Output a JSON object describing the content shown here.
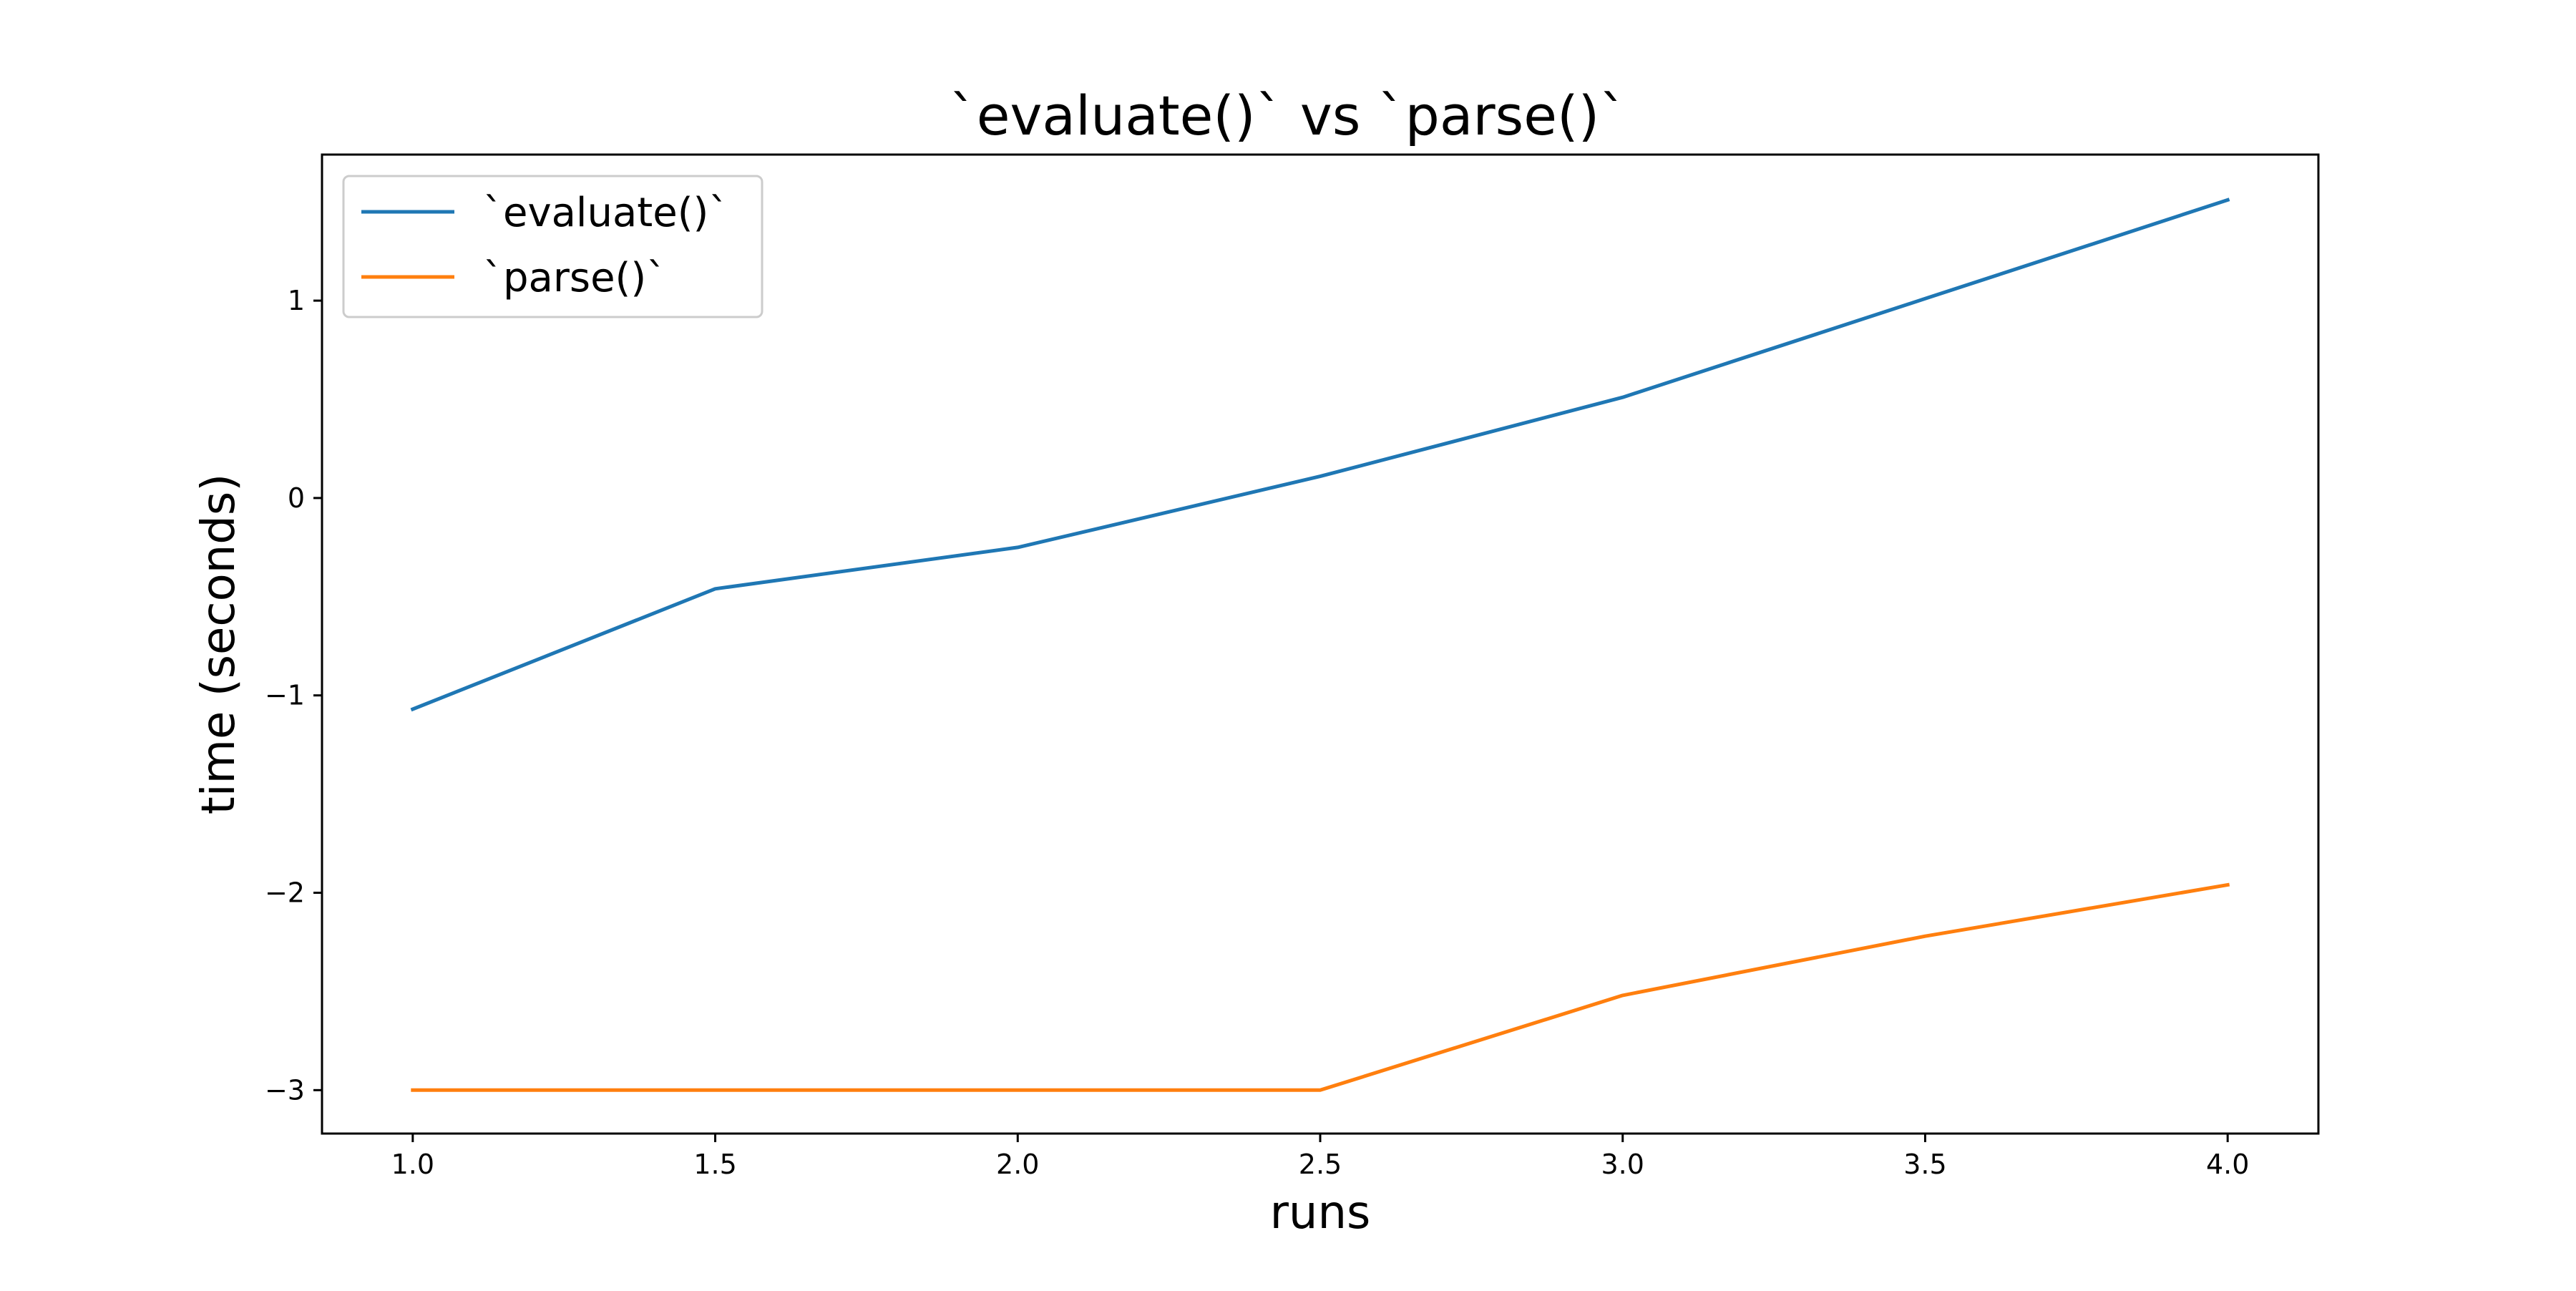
{
  "chart_data": {
    "type": "line",
    "title": "`evaluate()` vs `parse()`",
    "xlabel": "runs",
    "ylabel": "time (seconds)",
    "xlim": [
      0.85,
      4.15
    ],
    "ylim": [
      -3.22,
      1.74
    ],
    "xticks": [
      1.0,
      1.5,
      2.0,
      2.5,
      3.0,
      3.5,
      4.0
    ],
    "xtick_labels": [
      "1.0",
      "1.5",
      "2.0",
      "2.5",
      "3.0",
      "3.5",
      "4.0"
    ],
    "yticks": [
      -3,
      -2,
      -1,
      0,
      1
    ],
    "ytick_labels": [
      "−3",
      "−2",
      "−1",
      "0",
      "1"
    ],
    "grid": false,
    "legend_position": "upper left",
    "series": [
      {
        "name": "`evaluate()`",
        "color": "#1f77b4",
        "x": [
          1.0,
          1.5,
          2.0,
          2.5,
          3.0,
          3.5,
          4.0
        ],
        "y": [
          -1.07,
          -0.46,
          -0.25,
          0.11,
          0.51,
          1.01,
          1.51
        ]
      },
      {
        "name": "`parse()`",
        "color": "#ff7f0e",
        "x": [
          1.0,
          1.5,
          2.0,
          2.5,
          3.0,
          3.5,
          4.0
        ],
        "y": [
          -3.0,
          -3.0,
          -3.0,
          -3.0,
          -2.52,
          -2.22,
          -1.96
        ]
      }
    ]
  }
}
